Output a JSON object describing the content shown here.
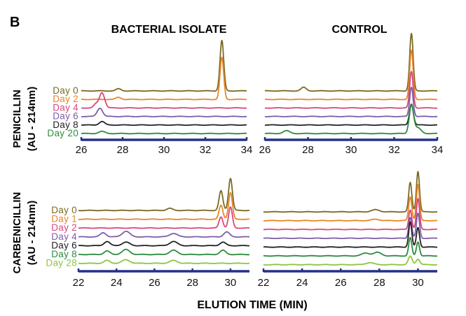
{
  "panel_letter": "B",
  "xlabel": "ELUTION TIME (MIN)",
  "rows": [
    {
      "row_label": "PENICILLIN",
      "unit_label": "(AU - 214nm)"
    },
    {
      "row_label": "CARBENICILLIN",
      "unit_label": "(AU - 214nm)"
    }
  ],
  "chart_data": [
    {
      "type": "line",
      "title": "BACTERIAL ISOLATE",
      "row": 0,
      "xlabel": "ELUTION TIME (MIN)",
      "ylabel": "AU - 214nm",
      "xlim": [
        26,
        34
      ],
      "xticks": [
        26,
        28,
        30,
        32,
        34
      ],
      "series": [
        {
          "name": "Day 0",
          "color": "#7a6a23",
          "peaks": [
            [
              27.8,
              3,
              0.12
            ],
            [
              32.8,
              72,
              0.09
            ]
          ]
        },
        {
          "name": "Day 2",
          "color": "#e8852a",
          "peaks": [
            [
              27.8,
              3,
              0.12
            ],
            [
              32.8,
              60,
              0.09
            ]
          ]
        },
        {
          "name": "Day 4",
          "color": "#d9477e",
          "peaks": [
            [
              27.0,
              22,
              0.13
            ],
            [
              26.7,
              5,
              0.1
            ]
          ]
        },
        {
          "name": "Day 6",
          "color": "#7c5ea8",
          "peaks": [
            [
              26.9,
              12,
              0.13
            ]
          ]
        },
        {
          "name": "Day 8",
          "color": "#222222",
          "peaks": [
            [
              27.0,
              5,
              0.13
            ]
          ]
        },
        {
          "name": "Day 20",
          "color": "#2e8b3e",
          "peaks": [
            [
              27.0,
              3,
              0.15
            ]
          ]
        }
      ]
    },
    {
      "type": "line",
      "title": "CONTROL",
      "row": 0,
      "xlabel": "ELUTION TIME (MIN)",
      "ylabel": "AU - 214nm",
      "xlim": [
        26,
        34
      ],
      "xticks": [
        26,
        28,
        30,
        32,
        34
      ],
      "series": [
        {
          "name": "Day 0",
          "color": "#7a6a23",
          "peaks": [
            [
              27.8,
              5,
              0.12
            ],
            [
              32.8,
              82,
              0.08
            ]
          ]
        },
        {
          "name": "Day 2",
          "color": "#e8852a",
          "peaks": [
            [
              32.8,
              70,
              0.08
            ]
          ]
        },
        {
          "name": "Day 4",
          "color": "#d9477e",
          "peaks": [
            [
              32.8,
              52,
              0.08
            ]
          ]
        },
        {
          "name": "Day 6",
          "color": "#7c5ea8",
          "peaks": [
            [
              32.8,
              42,
              0.08
            ]
          ]
        },
        {
          "name": "Day 8",
          "color": "#222222",
          "peaks": [
            [
              32.8,
              30,
              0.09
            ]
          ]
        },
        {
          "name": "Day 20",
          "color": "#2e8b3e",
          "peaks": [
            [
              27.0,
              4,
              0.15
            ],
            [
              32.8,
              40,
              0.1
            ],
            [
              33.1,
              8,
              0.15
            ]
          ]
        }
      ]
    },
    {
      "type": "line",
      "title": "",
      "row": 1,
      "xlabel": "ELUTION TIME (MIN)",
      "ylabel": "AU - 214nm",
      "xlim": [
        22,
        31
      ],
      "xticks": [
        22,
        24,
        26,
        28,
        30
      ],
      "series": [
        {
          "name": "Day 0",
          "color": "#7a6a23",
          "peaks": [
            [
              26.8,
              3,
              0.15
            ],
            [
              29.5,
              28,
              0.1
            ],
            [
              30.0,
              46,
              0.1
            ]
          ]
        },
        {
          "name": "Day 1",
          "color": "#e8852a",
          "peaks": [
            [
              29.5,
              20,
              0.1
            ],
            [
              30.0,
              38,
              0.1
            ]
          ]
        },
        {
          "name": "Day 2",
          "color": "#d9477e",
          "peaks": [
            [
              29.5,
              16,
              0.1
            ],
            [
              30.0,
              30,
              0.1
            ]
          ]
        },
        {
          "name": "Day 4",
          "color": "#7c5ea8",
          "peaks": [
            [
              23.3,
              6,
              0.15
            ],
            [
              24.5,
              8,
              0.2
            ],
            [
              27.0,
              5,
              0.2
            ],
            [
              29.8,
              7,
              0.15
            ]
          ]
        },
        {
          "name": "Day 6",
          "color": "#222222",
          "peaks": [
            [
              23.5,
              6,
              0.15
            ],
            [
              24.5,
              5,
              0.2
            ],
            [
              27.0,
              6,
              0.2
            ],
            [
              29.6,
              5,
              0.15
            ]
          ]
        },
        {
          "name": "Day 8",
          "color": "#2e8b3e",
          "peaks": [
            [
              23.5,
              5,
              0.15
            ],
            [
              24.5,
              7,
              0.2
            ],
            [
              27.0,
              6,
              0.2
            ],
            [
              29.6,
              6,
              0.15
            ]
          ]
        },
        {
          "name": "Day 28",
          "color": "#8cc63f",
          "peaks": [
            [
              23.5,
              4,
              0.15
            ],
            [
              24.5,
              5,
              0.2
            ],
            [
              27.0,
              4,
              0.2
            ]
          ]
        }
      ]
    },
    {
      "type": "line",
      "title": "",
      "row": 1,
      "xlabel": "ELUTION TIME (MIN)",
      "ylabel": "AU - 214nm",
      "xlim": [
        22,
        31
      ],
      "xticks": [
        22,
        24,
        26,
        28,
        30
      ],
      "series": [
        {
          "name": "Day 0",
          "color": "#7a6a23",
          "peaks": [
            [
              27.8,
              3,
              0.2
            ],
            [
              29.6,
              42,
              0.08
            ],
            [
              30.0,
              58,
              0.08
            ]
          ]
        },
        {
          "name": "Day 1",
          "color": "#e8852a",
          "peaks": [
            [
              27.8,
              2,
              0.2
            ],
            [
              29.6,
              34,
              0.08
            ],
            [
              30.0,
              52,
              0.08
            ]
          ]
        },
        {
          "name": "Day 2",
          "color": "#d9477e",
          "peaks": [
            [
              29.6,
              28,
              0.08
            ],
            [
              30.0,
              44,
              0.08
            ]
          ]
        },
        {
          "name": "Day 4",
          "color": "#7c5ea8",
          "peaks": [
            [
              29.6,
              30,
              0.08
            ],
            [
              30.0,
              36,
              0.08
            ]
          ]
        },
        {
          "name": "Day 6",
          "color": "#222222",
          "peaks": [
            [
              29.6,
              36,
              0.08
            ],
            [
              30.0,
              28,
              0.08
            ]
          ]
        },
        {
          "name": "Day 8",
          "color": "#2e8b3e",
          "peaks": [
            [
              27.3,
              4,
              0.2
            ],
            [
              27.9,
              5,
              0.2
            ],
            [
              29.6,
              26,
              0.08
            ],
            [
              30.0,
              20,
              0.08
            ]
          ]
        },
        {
          "name": "Day 28",
          "color": "#8cc63f",
          "peaks": [
            [
              27.5,
              3,
              0.2
            ],
            [
              29.6,
              12,
              0.1
            ],
            [
              30.0,
              8,
              0.1
            ]
          ]
        }
      ]
    }
  ]
}
